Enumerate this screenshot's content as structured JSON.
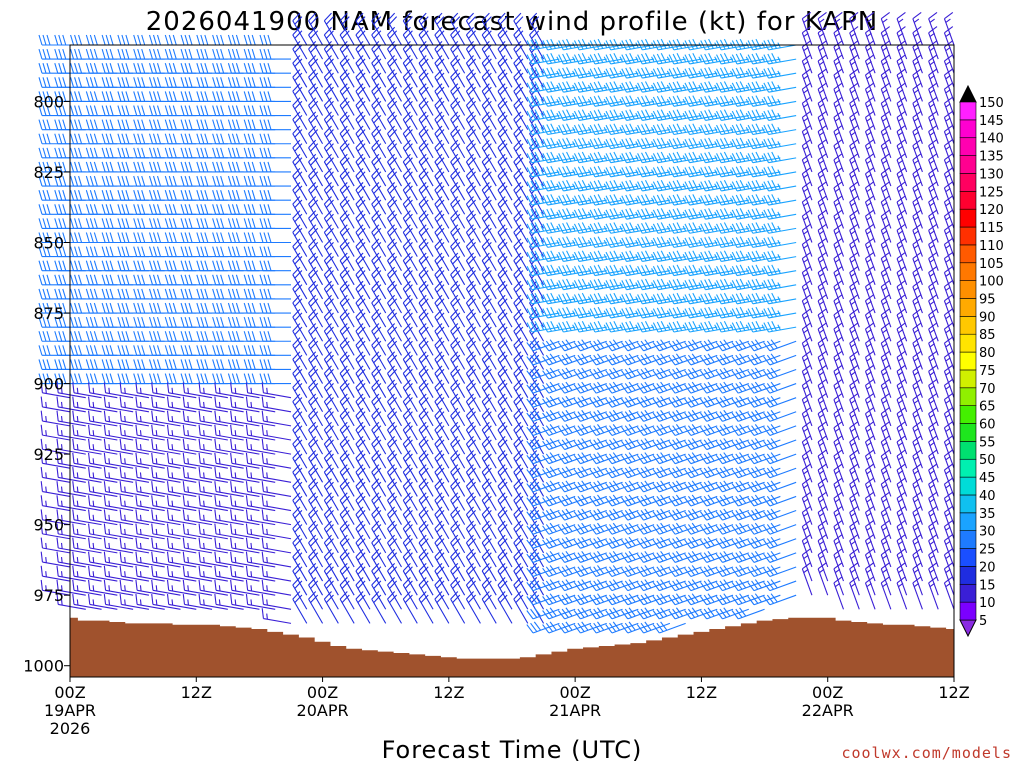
{
  "chart_data": {
    "type": "wind_barb_profile",
    "title": "2026041900 NAM forecast wind profile (kt) for KAPN",
    "xlabel": "Forecast Time (UTC)",
    "ylabel": "",
    "credit": "coolwx.com/models",
    "y_axis": {
      "unit": "hPa",
      "range": [
        1004,
        780
      ],
      "ticks": [
        "800",
        "825",
        "850",
        "875",
        "900",
        "925",
        "950",
        "975",
        "1000"
      ]
    },
    "x_axis": {
      "range_hours": [
        0,
        84
      ],
      "ticks": [
        {
          "hour": 0,
          "lines": [
            "00Z",
            "19APR",
            "2026"
          ]
        },
        {
          "hour": 12,
          "lines": [
            "12Z"
          ]
        },
        {
          "hour": 24,
          "lines": [
            "00Z",
            "20APR"
          ]
        },
        {
          "hour": 36,
          "lines": [
            "12Z"
          ]
        },
        {
          "hour": 48,
          "lines": [
            "00Z",
            "21APR"
          ]
        },
        {
          "hour": 60,
          "lines": [
            "12Z"
          ]
        },
        {
          "hour": 72,
          "lines": [
            "00Z",
            "22APR"
          ]
        },
        {
          "hour": 84,
          "lines": [
            "12Z"
          ]
        }
      ]
    },
    "barb_levels_hpa": [
      780,
      785,
      790,
      795,
      800,
      805,
      810,
      815,
      820,
      825,
      830,
      835,
      840,
      845,
      850,
      855,
      860,
      865,
      870,
      875,
      880,
      885,
      890,
      895,
      900,
      905,
      910,
      915,
      920,
      925,
      930,
      935,
      940,
      945,
      950,
      955,
      960,
      965,
      970,
      975,
      980,
      985
    ],
    "times_hours": [
      0,
      1.5,
      3,
      4.5,
      6,
      7.5,
      9,
      10.5,
      12,
      13.5,
      15,
      16.5,
      18,
      19.5,
      21,
      22.5,
      24,
      25.5,
      27,
      28.5,
      30,
      31.5,
      33,
      34.5,
      36,
      37.5,
      39,
      40.5,
      42,
      43.5,
      45,
      46.5,
      48,
      49.5,
      51,
      52.5,
      54,
      55.5,
      57,
      58.5,
      60,
      61.5,
      63,
      64.5,
      66,
      67.5,
      69,
      70.5,
      72,
      73.5,
      75,
      76.5,
      78,
      79.5,
      81,
      82.5,
      84
    ],
    "surface_pressure_hpa": [
      983,
      984,
      984,
      984.5,
      985,
      985,
      985,
      985.5,
      985.5,
      985.5,
      986,
      986.5,
      987,
      988,
      989,
      990,
      991.5,
      993,
      994,
      994.5,
      995,
      995.5,
      996,
      996.5,
      997,
      997.5,
      997.5,
      997.5,
      997.5,
      997,
      996,
      995,
      994,
      993.5,
      993,
      992.5,
      992,
      991,
      990,
      989,
      988,
      987,
      986,
      985,
      984,
      983.5,
      983,
      983,
      983,
      984,
      984.5,
      985,
      985.5,
      985.5,
      986,
      986.5,
      987
    ],
    "surface_fill_color": "#a0522d",
    "colorbar": {
      "labels": [
        "5",
        "10",
        "15",
        "20",
        "25",
        "30",
        "35",
        "40",
        "45",
        "50",
        "55",
        "60",
        "65",
        "70",
        "75",
        "80",
        "85",
        "90",
        "95",
        "100",
        "105",
        "110",
        "115",
        "120",
        "125",
        "130",
        "135",
        "140",
        "145",
        "150"
      ],
      "colors": [
        "#8a2be2",
        "#7b00ff",
        "#3a1fd6",
        "#1f2de0",
        "#1a4fff",
        "#1e7bff",
        "#1aa3ff",
        "#10c0f0",
        "#00dcd8",
        "#00f0b0",
        "#00e070",
        "#1ee61e",
        "#44f000",
        "#90f000",
        "#d0f000",
        "#ffff00",
        "#ffe400",
        "#ffc800",
        "#ffaa00",
        "#ff9000",
        "#ff7800",
        "#ff5a00",
        "#ff3000",
        "#ff0000",
        "#ff0030",
        "#ff0060",
        "#ff0090",
        "#ff00b0",
        "#ff00d0",
        "#ff20ff"
      ]
    },
    "wind_regimes": [
      {
        "t0": 0,
        "t1": 22,
        "p0": 780,
        "p1": 900,
        "direction_deg": 270,
        "speed_kt": 30
      },
      {
        "t0": 0,
        "t1": 22,
        "p0": 900,
        "p1": 990,
        "direction_deg": 280,
        "speed_kt": 15
      },
      {
        "t0": 22,
        "t1": 46,
        "p0": 780,
        "p1": 990,
        "direction_deg": 330,
        "speed_kt": 20
      },
      {
        "t0": 46,
        "t1": 70,
        "p0": 780,
        "p1": 880,
        "direction_deg": 260,
        "speed_kt": 35
      },
      {
        "t0": 46,
        "t1": 70,
        "p0": 880,
        "p1": 990,
        "direction_deg": 250,
        "speed_kt": 30
      },
      {
        "t0": 70,
        "t1": 84,
        "p0": 780,
        "p1": 990,
        "direction_deg": 340,
        "speed_kt": 15
      }
    ]
  }
}
